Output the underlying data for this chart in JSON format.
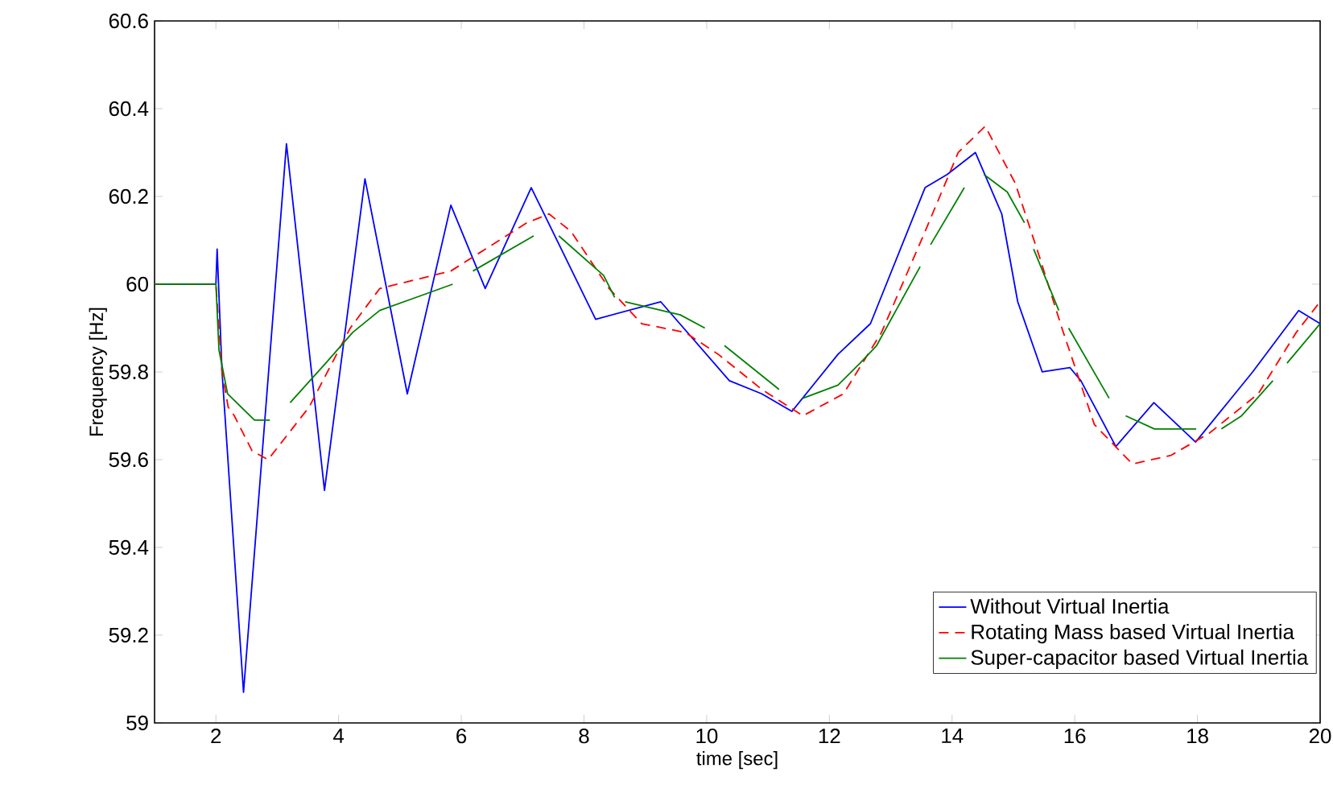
{
  "chart_data": {
    "type": "line",
    "xlabel": "time [sec]",
    "ylabel": "Frequency [Hz]",
    "xlim": [
      1,
      20
    ],
    "ylim": [
      59,
      60.6
    ],
    "xticks": [
      2,
      4,
      6,
      8,
      10,
      12,
      14,
      16,
      18,
      20
    ],
    "yticks": [
      59,
      59.2,
      59.4,
      59.6,
      59.8,
      60,
      60.2,
      60.4,
      60.6
    ],
    "legend": "bottom right",
    "marker": "none",
    "grid": false,
    "series": [
      {
        "name": "Without Virtual Inertia",
        "color": "#0000ff",
        "line_style": "solid",
        "x": [
          1,
          2,
          2.02,
          2.1,
          2.45,
          3.15,
          3.77,
          4.43,
          5.12,
          5.83,
          6.39,
          7.14,
          8.19,
          9.25,
          10.37,
          10.9,
          11.39,
          12.14,
          12.67,
          13.56,
          13.92,
          14.38,
          14.81,
          15.07,
          15.47,
          15.92,
          16.1,
          16.67,
          17.29,
          17.97,
          18.9,
          19.65,
          20
        ],
        "values": [
          60,
          60,
          60.08,
          59.8,
          59.07,
          60.32,
          59.53,
          60.24,
          59.75,
          60.18,
          59.99,
          60.22,
          59.92,
          59.96,
          59.78,
          59.75,
          59.71,
          59.84,
          59.91,
          60.22,
          60.25,
          60.3,
          60.16,
          59.96,
          59.8,
          59.81,
          59.78,
          59.63,
          59.73,
          59.64,
          59.8,
          59.94,
          59.91
        ]
      },
      {
        "name": "Rotating Mass based Virtual Inertia",
        "color": "#ff0000",
        "line_style": "dashed",
        "x": [
          1,
          2,
          2.1,
          2.2,
          2.3,
          2.59,
          2.85,
          3.52,
          4.19,
          4.67,
          5.83,
          7.07,
          7.43,
          7.79,
          8.41,
          8.94,
          9.65,
          10.19,
          10.9,
          11.57,
          12.23,
          12.85,
          13.56,
          14.1,
          14.54,
          15.03,
          15.43,
          15.79,
          16.32,
          16.94,
          17.57,
          18.19,
          18.99,
          19.61,
          20
        ],
        "values": [
          60,
          60,
          59.8,
          59.72,
          59.7,
          59.62,
          59.6,
          59.72,
          59.9,
          59.99,
          60.03,
          60.14,
          60.16,
          60.12,
          59.99,
          59.91,
          59.89,
          59.84,
          59.76,
          59.7,
          59.75,
          59.89,
          60.12,
          60.3,
          60.36,
          60.23,
          60.06,
          59.9,
          59.68,
          59.59,
          59.61,
          59.66,
          59.75,
          59.89,
          59.96
        ]
      },
      {
        "name": "Super-capacitor based Virtual Inertia",
        "color": "#008000",
        "line_style": "solid",
        "x": [
          1,
          2,
          2.05,
          2.19,
          2.63,
          2.88,
          3.05,
          3.21,
          3.79,
          4.23,
          4.67,
          5.86,
          6.02,
          6.19,
          7.18,
          7.38,
          7.59,
          8.32,
          8.5,
          8.6,
          8.67,
          9.57,
          9.97,
          10.13,
          10.29,
          11.18,
          11.38,
          11.57,
          12.14,
          12.5,
          12.77,
          13.48,
          13.56,
          13.65,
          14.2,
          14.36,
          14.52,
          14.9,
          15.18,
          15.25,
          15.33,
          15.74,
          15.82,
          15.9,
          16.56,
          16.7,
          16.83,
          17.3,
          17.98,
          18.2,
          18.39,
          18.72,
          19.23,
          19.35,
          19.46,
          20
        ],
        "values": [
          60,
          60,
          59.85,
          59.75,
          59.69,
          59.69,
          null,
          59.73,
          59.82,
          59.89,
          59.94,
          60,
          null,
          60.03,
          60.11,
          null,
          60.11,
          60.02,
          59.97,
          null,
          59.96,
          59.93,
          59.9,
          null,
          59.86,
          59.76,
          null,
          59.74,
          59.77,
          59.82,
          59.86,
          60.04,
          null,
          60.09,
          60.22,
          null,
          60.25,
          60.21,
          60.14,
          null,
          60.08,
          59.94,
          null,
          59.9,
          59.74,
          null,
          59.7,
          59.67,
          59.67,
          null,
          59.67,
          59.7,
          59.78,
          null,
          59.82,
          59.91
        ]
      }
    ]
  }
}
